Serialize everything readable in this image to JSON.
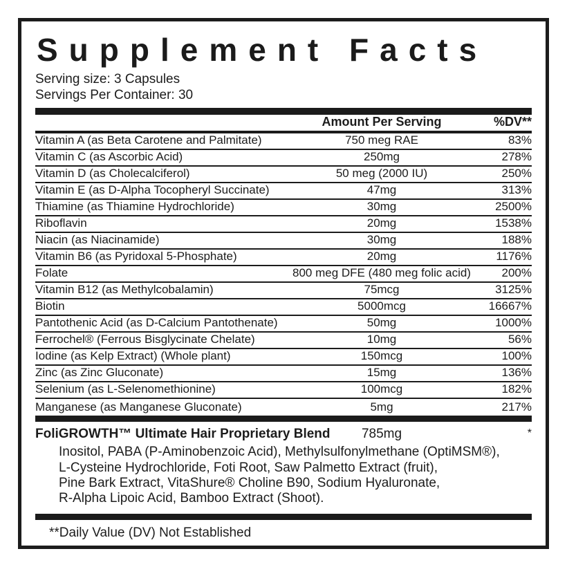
{
  "label": {
    "title": "Supplement Facts",
    "serving_size": "Serving size: 3 Capsules",
    "servings_per_container": "Servings Per Container: 30",
    "columns": {
      "amount": "Amount Per Serving",
      "dv": "%DV**"
    },
    "rows": [
      {
        "name": "Vitamin A (as Beta Carotene and Palmitate)",
        "amount": "750 meg RAE",
        "dv": "83%"
      },
      {
        "name": "Vitamin C (as Ascorbic Acid)",
        "amount": "250mg",
        "dv": "278%"
      },
      {
        "name": "Vitamin D (as Cholecalciferol)",
        "amount": "50 meg (2000 IU)",
        "dv": "250%"
      },
      {
        "name": "Vitamin E (as D-Alpha Tocopheryl Succinate)",
        "amount": "47mg",
        "dv": "313%"
      },
      {
        "name": "Thiamine (as Thiamine Hydrochloride)",
        "amount": "30mg",
        "dv": "2500%"
      },
      {
        "name": "Riboflavin",
        "amount": "20mg",
        "dv": "1538%"
      },
      {
        "name": "Niacin (as Niacinamide)",
        "amount": "30mg",
        "dv": "188%"
      },
      {
        "name": "Vitamin B6 (as Pyridoxal 5-Phosphate)",
        "amount": "20mg",
        "dv": "1176%"
      },
      {
        "name": "Folate",
        "amount": "800 meg DFE (480 meg folic acid)",
        "dv": "200%"
      },
      {
        "name": "Vitamin B12 (as Methylcobalamin)",
        "amount": "75mcg",
        "dv": "3125%"
      },
      {
        "name": "Biotin",
        "amount": "5000mcg",
        "dv": "16667%"
      },
      {
        "name": "Pantothenic Acid (as D-Calcium Pantothenate)",
        "amount": "50mg",
        "dv": "1000%"
      },
      {
        "name": "Ferrochel® (Ferrous Bisglycinate Chelate)",
        "amount": "10mg",
        "dv": "56%"
      },
      {
        "name": "Iodine (as Kelp Extract) (Whole plant)",
        "amount": "150mcg",
        "dv": "100%"
      },
      {
        "name": "Zinc (as Zinc Gluconate)",
        "amount": "15mg",
        "dv": "136%"
      },
      {
        "name": "Selenium (as L-Selenomethionine)",
        "amount": "100mcg",
        "dv": "182%"
      },
      {
        "name": "Manganese (as Manganese Gluconate)",
        "amount": "5mg",
        "dv": "217%"
      }
    ],
    "blend": {
      "name": "FoliGROWTH™ Ultimate Hair Proprietary Blend",
      "amount": "785mg",
      "dv": "*",
      "ingredients": [
        "Inositol, PABA (P-Aminobenzoic Acid), Methylsulfonylmethane (OptiMSM®),",
        "L-Cysteine Hydrochloride, Foti Root, Saw Palmetto Extract (fruit),",
        "Pine Bark Extract, VitaShure® Choline B90, Sodium Hyaluronate,",
        "R-Alpha Lipoic Acid, Bamboo Extract (Shoot)."
      ]
    },
    "footnote": "**Daily Value (DV) Not Established",
    "colors": {
      "background": "#ffffff",
      "text": "#1c1c1c",
      "rule": "#1b1b1b"
    }
  }
}
